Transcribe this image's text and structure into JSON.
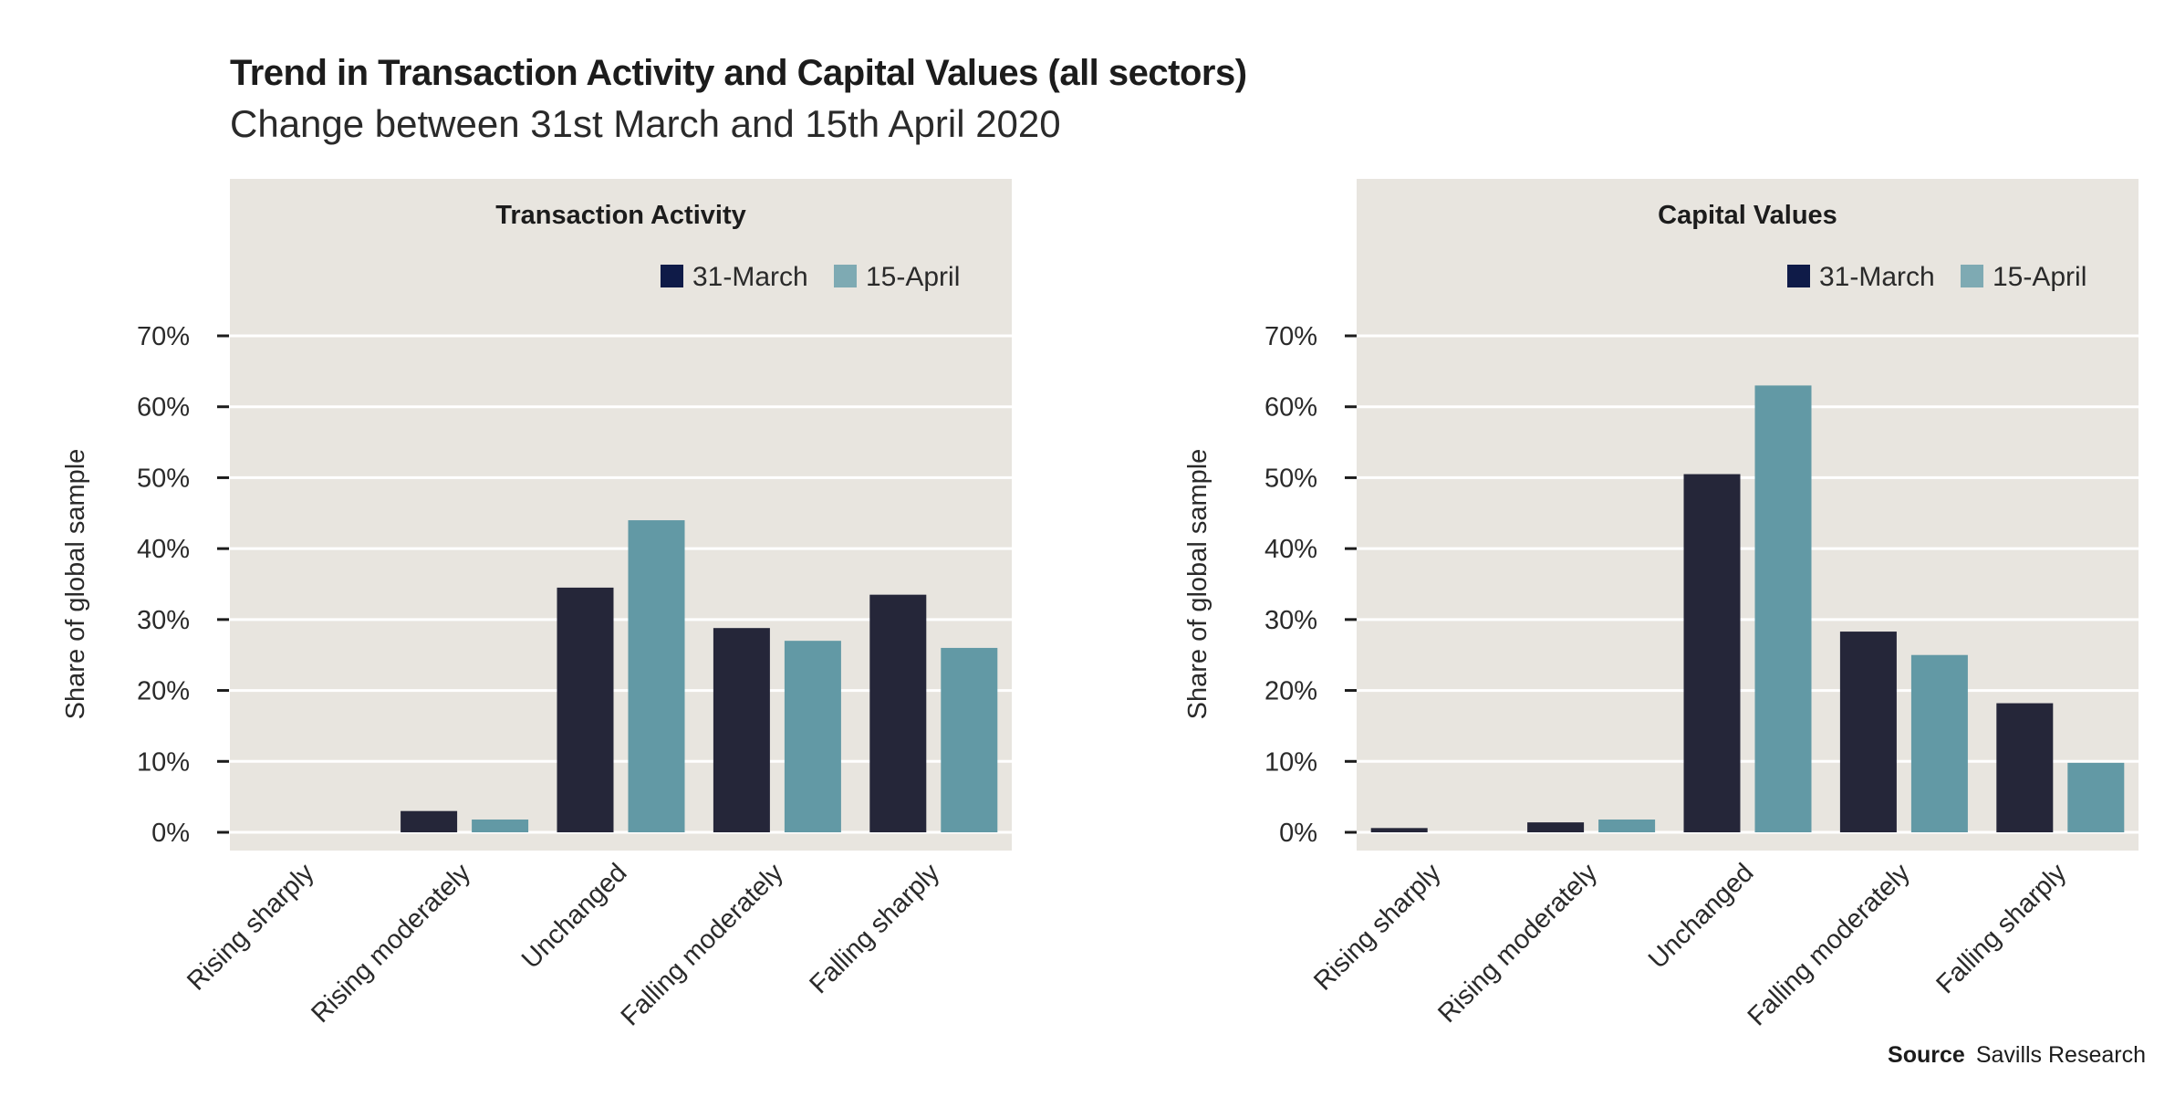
{
  "figure": {
    "title": "Trend in Transaction Activity and Capital Values (all sectors)",
    "subtitle": "Change between 31st March and 15th April 2020",
    "source_label": "Source",
    "source_text": "Savills Research"
  },
  "colors": {
    "panel_bg": "#e8e5df",
    "gridline": "#ffffff",
    "series_31_march": "#252639",
    "series_15_april": "#6299a5",
    "legend_31_march": "#0f1b48",
    "legend_15_april": "#7eaab3"
  },
  "chart_data": [
    {
      "type": "bar",
      "title": "Transaction Activity",
      "ylabel": "Share of global sample",
      "xlabel": "",
      "ylim": [
        0,
        70
      ],
      "yticks": [
        "0%",
        "10%",
        "20%",
        "30%",
        "40%",
        "50%",
        "60%",
        "70%"
      ],
      "grid": true,
      "legend": "top-right",
      "categories": [
        "Rising sharply",
        "Rising moderately",
        "Unchanged",
        "Falling moderately",
        "Falling sharply"
      ],
      "series": [
        {
          "name": "31-March",
          "values": [
            0,
            3,
            34.5,
            28.8,
            33.5
          ]
        },
        {
          "name": "15-April",
          "values": [
            0,
            1.8,
            44,
            27,
            26
          ]
        }
      ]
    },
    {
      "type": "bar",
      "title": "Capital Values",
      "ylabel": "Share of global sample",
      "xlabel": "",
      "ylim": [
        0,
        70
      ],
      "yticks": [
        "0%",
        "10%",
        "20%",
        "30%",
        "40%",
        "50%",
        "60%",
        "70%"
      ],
      "grid": true,
      "legend": "top-right",
      "categories": [
        "Rising sharply",
        "Rising moderately",
        "Unchanged",
        "Falling moderately",
        "Falling sharply"
      ],
      "series": [
        {
          "name": "31-March",
          "values": [
            0.6,
            1.4,
            50.5,
            28.3,
            18.2
          ]
        },
        {
          "name": "15-April",
          "values": [
            0,
            1.8,
            63,
            25,
            9.8
          ]
        }
      ]
    }
  ]
}
